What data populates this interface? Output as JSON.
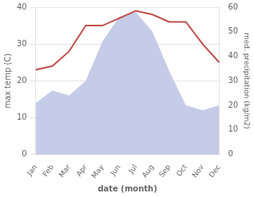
{
  "chart_data": {
    "type": "line",
    "xlabel": "date (month)",
    "ylabel": "max temp (C)",
    "y2label": "med. precipitation (kg/m2)",
    "categories": [
      "Jan",
      "Feb",
      "Mar",
      "Apr",
      "May",
      "Jun",
      "Jul",
      "Aug",
      "Sep",
      "Oct",
      "Nov",
      "Dec"
    ],
    "series": [
      {
        "type": "area",
        "color": "#c5cce8",
        "axis": "y2",
        "values": [
          21,
          26,
          24,
          30,
          46,
          56,
          58,
          50,
          34,
          20,
          18,
          20
        ]
      },
      {
        "type": "line",
        "color": "#c0504d",
        "values": [
          23,
          24,
          28,
          35,
          35,
          37,
          39,
          38,
          36,
          36,
          30,
          25
        ]
      }
    ],
    "ylim": [
      0,
      40
    ],
    "yticks": [
      0,
      10,
      20,
      30,
      40
    ],
    "y2lim": [
      0,
      60
    ],
    "y2ticks": [
      0,
      10,
      20,
      30,
      40,
      50,
      60
    ],
    "grid": "y"
  }
}
